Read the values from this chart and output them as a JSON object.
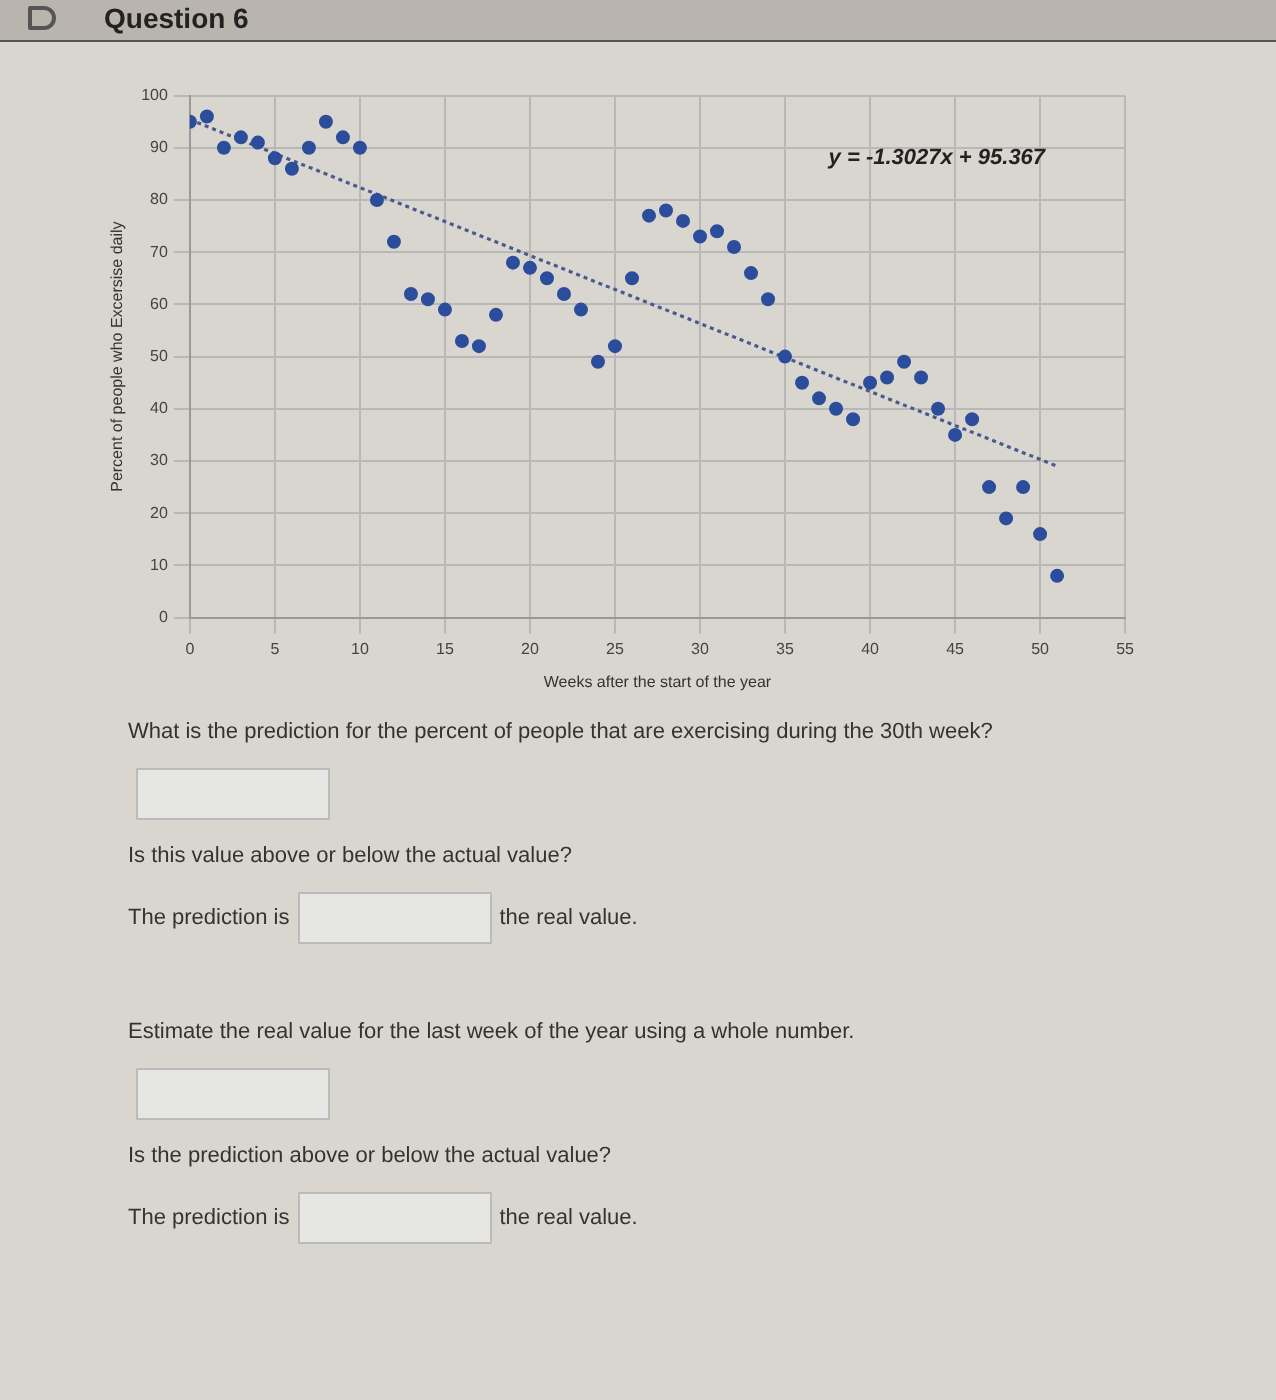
{
  "chart_data": {
    "type": "scatter",
    "title": "Question 6",
    "xlabel": "Weeks after the start of the year",
    "ylabel": "Percent of people who Excersise daily",
    "xlim": [
      0,
      55
    ],
    "xticks": [
      0,
      5,
      10,
      15,
      20,
      25,
      30,
      35,
      40,
      45,
      50,
      55
    ],
    "ylim": [
      0,
      100
    ],
    "yticks": [
      0,
      10,
      20,
      30,
      40,
      50,
      60,
      70,
      80,
      90,
      100
    ],
    "grid": true,
    "legend": false,
    "marker": "circle",
    "series": [
      {
        "color": "#2b4d9c",
        "x": [
          0,
          1,
          2,
          3,
          4,
          5,
          6,
          7,
          8,
          9,
          10,
          11,
          12,
          13,
          14,
          15,
          16,
          17,
          18,
          19,
          20,
          21,
          22,
          23,
          24,
          25,
          26,
          27,
          28,
          29,
          30,
          31,
          32,
          33,
          34,
          35,
          36,
          37,
          38,
          39,
          40,
          41,
          42,
          43,
          44,
          45,
          46,
          47,
          48,
          49,
          50,
          51
        ],
        "values": [
          95,
          96,
          90,
          92,
          91,
          88,
          86,
          90,
          95,
          92,
          90,
          80,
          72,
          62,
          61,
          59,
          53,
          52,
          58,
          68,
          67,
          65,
          62,
          59,
          49,
          52,
          65,
          77,
          78,
          76,
          73,
          74,
          71,
          66,
          61,
          50,
          45,
          42,
          40,
          38,
          45,
          46,
          49,
          46,
          40,
          35,
          38,
          25,
          19,
          25,
          16,
          8
        ]
      },
      {
        "type": "line",
        "line_style": "dotted",
        "marker": "none",
        "color": "#4a5a8c",
        "x": [
          0,
          51
        ],
        "values": [
          95.4,
          29
        ]
      }
    ],
    "annotations": [
      "y = -1.3027x + 95.367",
      "What is the prediction for the percent of people that are exercising during the 30th week?",
      "Is this value above or below the actual value?",
      "The prediction is",
      "the real value.",
      "Estimate the real value for the last week of the year using a whole number.",
      "Is the prediction above or below the actual value?",
      "The prediction is",
      "the real value."
    ]
  }
}
